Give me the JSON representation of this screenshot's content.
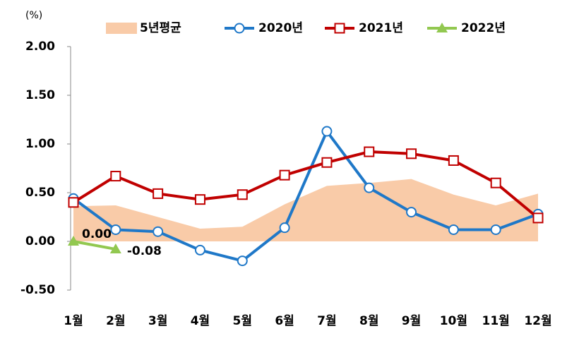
{
  "chart_data": {
    "type": "line",
    "unit_label": "(%)",
    "categories": [
      "1월",
      "2월",
      "3월",
      "4월",
      "5월",
      "6월",
      "7월",
      "8월",
      "9월",
      "10월",
      "11월",
      "12월"
    ],
    "series": [
      {
        "name": "5년평균",
        "type": "area",
        "color": "#f9cba8",
        "values": [
          0.36,
          0.37,
          0.25,
          0.13,
          0.15,
          0.38,
          0.57,
          0.6,
          0.64,
          0.48,
          0.37,
          0.49
        ]
      },
      {
        "name": "2020년",
        "color": "#1f78c8",
        "marker": "circle",
        "values": [
          0.44,
          0.12,
          0.1,
          -0.09,
          -0.2,
          0.14,
          1.13,
          0.55,
          0.3,
          0.12,
          0.12,
          0.28
        ]
      },
      {
        "name": "2021년",
        "color": "#c00000",
        "marker": "square",
        "values": [
          0.4,
          0.67,
          0.49,
          0.43,
          0.48,
          0.68,
          0.81,
          0.92,
          0.9,
          0.83,
          0.6,
          0.24
        ]
      },
      {
        "name": "2022년",
        "color": "#92c850",
        "marker": "triangle",
        "values": [
          0.0,
          -0.08,
          null,
          null,
          null,
          null,
          null,
          null,
          null,
          null,
          null,
          null
        ],
        "value_labels": [
          "0.00",
          "-0.08",
          null,
          null,
          null,
          null,
          null,
          null,
          null,
          null,
          null,
          null
        ]
      }
    ],
    "ylim": [
      -0.5,
      2.0
    ],
    "yticks": [
      {
        "value": -0.5,
        "label": "-0.50"
      },
      {
        "value": 0,
        "label": "0.00"
      },
      {
        "value": 0.5,
        "label": "0.50"
      },
      {
        "value": 1,
        "label": "1.00"
      },
      {
        "value": 1.5,
        "label": "1.50"
      },
      {
        "value": 2,
        "label": "2.00"
      }
    ],
    "grid": false
  }
}
